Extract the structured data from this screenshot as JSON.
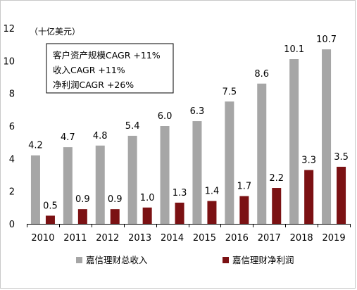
{
  "chart_data": {
    "type": "bar",
    "unit": "（十亿美元）",
    "categories": [
      "2010",
      "2011",
      "2012",
      "2013",
      "2014",
      "2015",
      "2016",
      "2017",
      "2018",
      "2019"
    ],
    "series": [
      {
        "name": "嘉信理财总收入",
        "color": "#a6a6a6",
        "values": [
          4.2,
          4.7,
          4.8,
          5.4,
          6.0,
          6.3,
          7.5,
          8.6,
          10.1,
          10.7
        ],
        "labels": [
          "4.2",
          "4.7",
          "4.8",
          "5.4",
          "6.0",
          "6.3",
          "7.5",
          "8.6",
          "10.1",
          "10.7"
        ]
      },
      {
        "name": "嘉信理财净利润",
        "color": "#7b1113",
        "values": [
          0.5,
          0.9,
          0.9,
          1.0,
          1.3,
          1.4,
          1.7,
          2.2,
          3.3,
          3.5
        ],
        "labels": [
          "0.5",
          "0.9",
          "0.9",
          "1.0",
          "1.3",
          "1.4",
          "1.7",
          "2.2",
          "3.3",
          "3.5"
        ]
      }
    ],
    "yticks": [
      "0",
      "2",
      "4",
      "6",
      "8",
      "10",
      "12"
    ],
    "ylim": [
      0,
      12
    ],
    "annotations": [
      "客户资产规模CAGR +11%",
      "收入CAGR +11%",
      "净利润CAGR +26%"
    ],
    "legend_position": "bottom",
    "grid": false
  }
}
